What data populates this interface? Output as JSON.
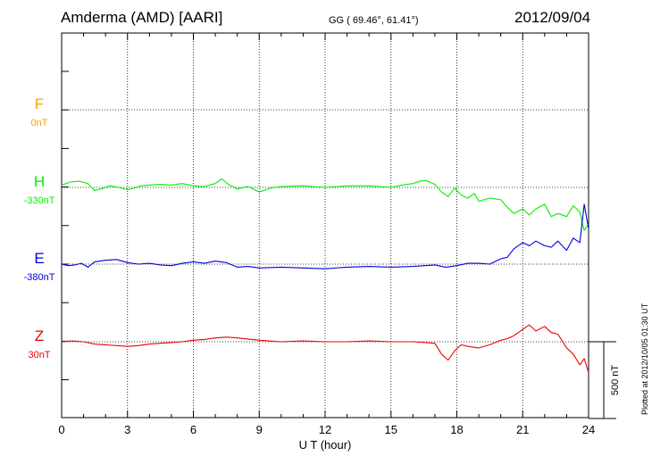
{
  "header": {
    "station": "Amderma (AMD)  [AARI]",
    "coords": "GG ( 69.46°,  61.41°)",
    "date": "2012/09/04",
    "plotted_note": "Plotted at 2012/10/05 01:30 UT"
  },
  "chart_data": {
    "type": "line",
    "xlabel": "U T (hour)",
    "xlim": [
      0,
      24
    ],
    "x_ticks": [
      0,
      3,
      6,
      9,
      12,
      15,
      18,
      21,
      24
    ],
    "scale_bar_label": "500 nT",
    "scale_bar_nT": 500,
    "grid": true,
    "series": [
      {
        "name": "F",
        "offset_label": "0nT",
        "color": "#f5a800",
        "x": [],
        "y": []
      },
      {
        "name": "H",
        "offset_label": "-330nT",
        "color": "#00ee00",
        "x": [
          0,
          0.4,
          0.8,
          1.2,
          1.5,
          1.8,
          2.2,
          2.6,
          3.0,
          3.3,
          3.6,
          4.0,
          4.5,
          5.0,
          5.5,
          6.0,
          6.5,
          7.0,
          7.3,
          7.6,
          8.0,
          8.5,
          9.0,
          9.5,
          10,
          11,
          12,
          13,
          14,
          15,
          15.5,
          16,
          16.3,
          16.6,
          17,
          17.3,
          17.6,
          17.9,
          18.2,
          18.5,
          18.8,
          19,
          19.5,
          20,
          20.3,
          20.6,
          21,
          21.3,
          21.6,
          22,
          22.3,
          22.6,
          23,
          23.3,
          23.6,
          23.8,
          24
        ],
        "y": [
          15,
          35,
          40,
          25,
          -20,
          -10,
          10,
          0,
          -15,
          -5,
          10,
          15,
          20,
          15,
          25,
          10,
          5,
          25,
          55,
          20,
          -10,
          5,
          -30,
          -5,
          5,
          10,
          0,
          10,
          10,
          0,
          15,
          25,
          40,
          45,
          20,
          -30,
          -60,
          -5,
          -50,
          -70,
          -40,
          -90,
          -70,
          -80,
          -130,
          -170,
          -140,
          -180,
          -140,
          -110,
          -190,
          -170,
          -190,
          -120,
          -160,
          -280,
          -240
        ]
      },
      {
        "name": "E",
        "offset_label": "-380nT",
        "color": "#0000dd",
        "x": [
          0,
          0.3,
          0.6,
          0.9,
          1.2,
          1.5,
          2.0,
          2.5,
          3.0,
          3.5,
          4.0,
          4.5,
          5.0,
          5.5,
          6.0,
          6.5,
          7.0,
          7.5,
          8.0,
          8.5,
          9.0,
          10,
          11,
          12,
          13,
          14,
          15,
          16,
          17,
          17.5,
          18,
          18.5,
          19,
          19.5,
          20,
          20.3,
          20.6,
          21,
          21.3,
          21.6,
          22,
          22.3,
          22.6,
          23,
          23.3,
          23.6,
          23.8,
          24
        ],
        "y": [
          0,
          -10,
          -5,
          5,
          -20,
          15,
          25,
          30,
          10,
          0,
          5,
          -5,
          -10,
          5,
          15,
          5,
          20,
          10,
          -20,
          -15,
          -25,
          -20,
          -25,
          -30,
          -20,
          -15,
          -20,
          -15,
          -5,
          -20,
          -10,
          5,
          5,
          0,
          35,
          45,
          100,
          140,
          120,
          150,
          120,
          110,
          150,
          90,
          170,
          140,
          390,
          230
        ]
      },
      {
        "name": "Z",
        "offset_label": "30nT",
        "color": "#ee0000",
        "x": [
          0,
          0.5,
          1,
          1.5,
          2,
          2.5,
          3,
          3.5,
          4,
          4.5,
          5,
          5.5,
          6,
          6.5,
          7,
          7.5,
          8,
          9,
          10,
          11,
          12,
          13,
          14,
          15,
          16,
          17,
          17.3,
          17.6,
          17.9,
          18.2,
          18.5,
          19,
          19.5,
          20,
          20.3,
          20.6,
          21,
          21.3,
          21.6,
          22,
          22.3,
          22.6,
          23,
          23.3,
          23.6,
          23.8,
          24
        ],
        "y": [
          0,
          5,
          0,
          -15,
          -20,
          -25,
          -30,
          -25,
          -15,
          -10,
          -5,
          0,
          10,
          15,
          25,
          30,
          25,
          10,
          0,
          5,
          0,
          0,
          5,
          0,
          0,
          -10,
          -80,
          -120,
          -60,
          -20,
          -30,
          -40,
          -20,
          10,
          20,
          40,
          80,
          110,
          70,
          100,
          60,
          50,
          -40,
          -80,
          -150,
          -110,
          -200
        ]
      }
    ]
  }
}
